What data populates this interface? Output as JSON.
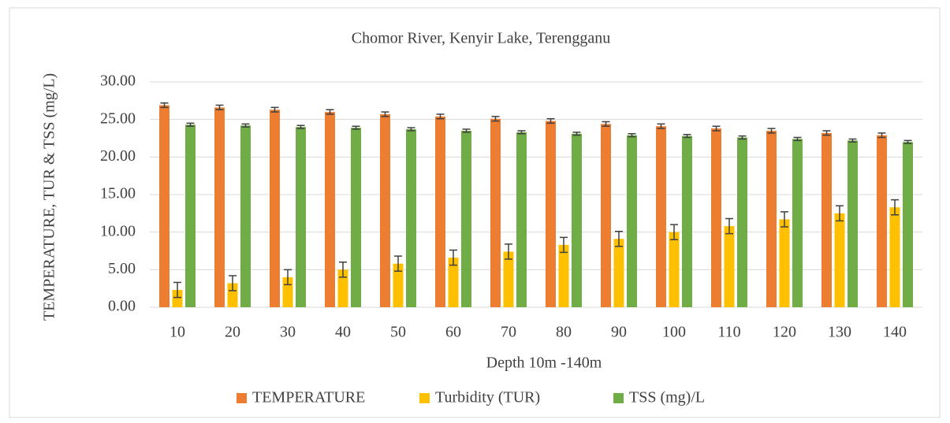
{
  "chart_data": {
    "type": "bar",
    "title": "Chomor River, Kenyir Lake, Terengganu",
    "x_label": "Depth 10m -140m",
    "y_label": "TEMPERATURE, TUR & TSS  (mg/L)",
    "categories": [
      "10",
      "20",
      "30",
      "40",
      "50",
      "60",
      "70",
      "80",
      "90",
      "100",
      "110",
      "120",
      "130",
      "140"
    ],
    "series": [
      {
        "name": "TEMPERATURE",
        "color": "#ed7d31",
        "values": [
          26.9,
          26.6,
          26.3,
          26.0,
          25.7,
          25.4,
          25.1,
          24.8,
          24.4,
          24.1,
          23.8,
          23.5,
          23.2,
          22.9
        ],
        "errors": [
          0.3,
          0.3,
          0.3,
          0.3,
          0.3,
          0.3,
          0.3,
          0.3,
          0.3,
          0.3,
          0.3,
          0.3,
          0.3,
          0.3
        ]
      },
      {
        "name": "Turbidity (TUR)",
        "color": "#ffc000",
        "values": [
          2.3,
          3.2,
          4.0,
          5.0,
          5.8,
          6.6,
          7.4,
          8.3,
          9.1,
          10.0,
          10.8,
          11.7,
          12.5,
          13.3
        ],
        "errors": [
          1.0,
          1.0,
          1.0,
          1.0,
          1.0,
          1.0,
          1.0,
          1.0,
          1.0,
          1.0,
          1.0,
          1.0,
          1.0,
          1.0
        ]
      },
      {
        "name": "TSS (mg)/L",
        "color": "#70ad47",
        "values": [
          24.3,
          24.2,
          24.0,
          23.9,
          23.7,
          23.5,
          23.3,
          23.1,
          22.9,
          22.8,
          22.6,
          22.4,
          22.2,
          22.0
        ],
        "errors": [
          0.2,
          0.2,
          0.2,
          0.2,
          0.2,
          0.2,
          0.2,
          0.2,
          0.2,
          0.2,
          0.2,
          0.2,
          0.2,
          0.2
        ]
      }
    ],
    "ylim": [
      0,
      30
    ],
    "yticks": [
      {
        "value": 0,
        "label": "0.00"
      },
      {
        "value": 5,
        "label": "5.00"
      },
      {
        "value": 10,
        "label": "10.00"
      },
      {
        "value": 15,
        "label": "15.00"
      },
      {
        "value": 20,
        "label": "20.00"
      },
      {
        "value": 25,
        "label": "25.00"
      },
      {
        "value": 30,
        "label": "30.00"
      }
    ],
    "grid": true,
    "legend": "bottom"
  }
}
